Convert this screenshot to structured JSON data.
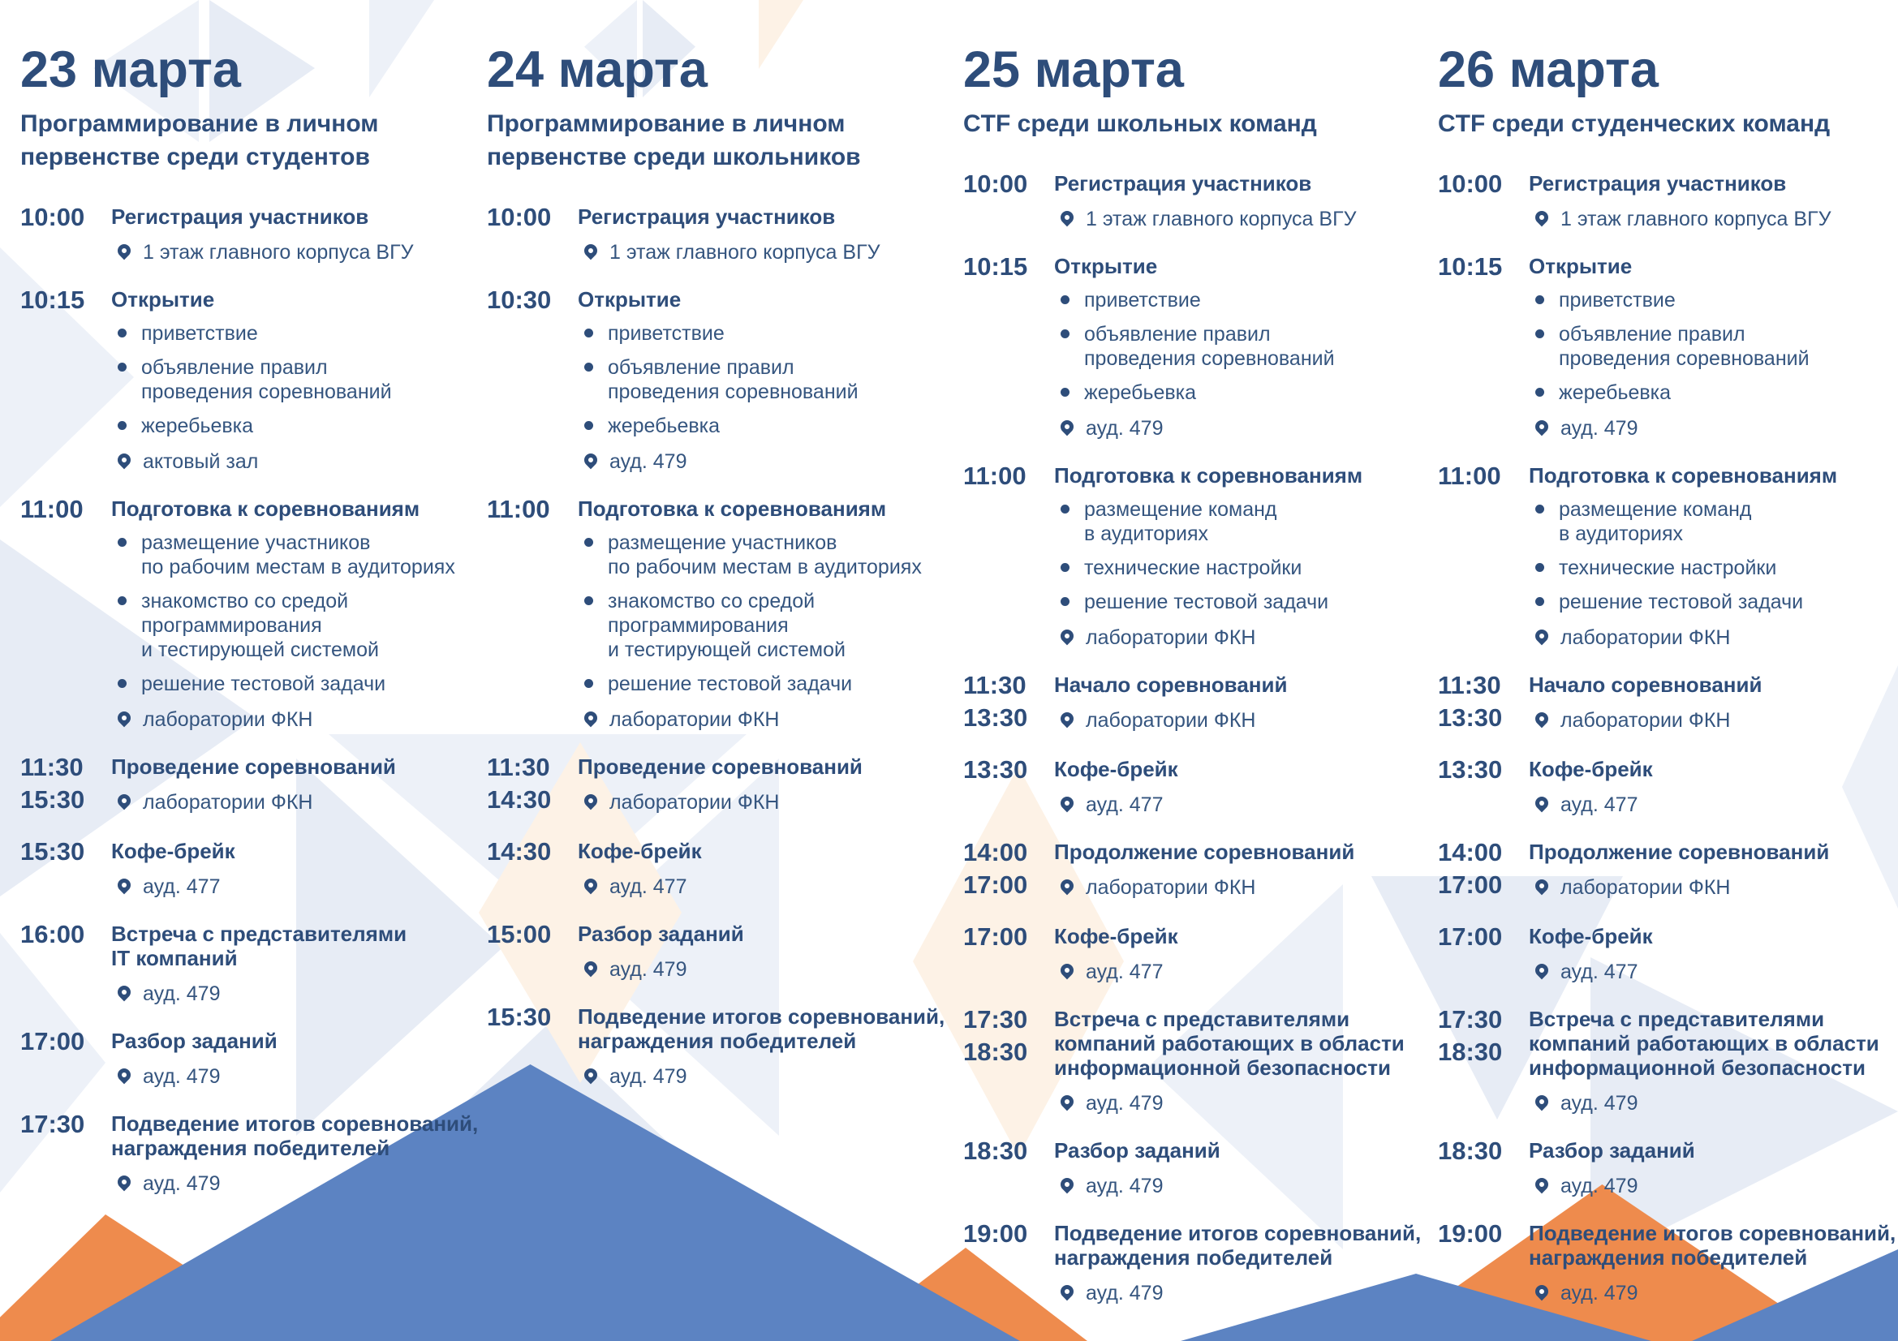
{
  "colors": {
    "navy": "#2e4d7a",
    "text": "#35557f",
    "mountain-blue": "#5c83c2",
    "mountain-orange": "#ee8b4d",
    "tri-blue": "#edf1f8",
    "tri-blue2": "#e7ecf5",
    "tri-peach": "#fdf2e6"
  },
  "icons": {
    "location": "map-pin-icon",
    "bullet": "bullet-dot-icon"
  },
  "days": [
    {
      "date": "23 марта",
      "subtitle": "Программирование в личном\nпервенстве среди студентов",
      "events": [
        {
          "times": [
            "10:00"
          ],
          "title": "Регистрация участников",
          "bullets": [],
          "location": "1 этаж главного корпуса ВГУ"
        },
        {
          "times": [
            "10:15"
          ],
          "title": "Открытие",
          "bullets": [
            "приветствие",
            "объявление правил\nпроведения соревнований",
            "жеребьевка"
          ],
          "location": "актовый зал"
        },
        {
          "times": [
            "11:00"
          ],
          "title": "Подготовка к соревнованиям",
          "bullets": [
            "размещение участников\nпо рабочим местам в аудиториях",
            "знакомство со средой\nпрограммирования\nи тестирующей системой",
            "решение тестовой задачи"
          ],
          "location": "лаборатории ФКН"
        },
        {
          "times": [
            "11:30",
            "15:30"
          ],
          "title": "Проведение соревнований",
          "bullets": [],
          "location": "лаборатории ФКН"
        },
        {
          "times": [
            "15:30"
          ],
          "title": "Кофе-брейк",
          "bullets": [],
          "location": "ауд. 477"
        },
        {
          "times": [
            "16:00"
          ],
          "title": "Встреча с представителями\nIT компаний",
          "bullets": [],
          "location": "ауд. 479"
        },
        {
          "times": [
            "17:00"
          ],
          "title": "Разбор заданий",
          "bullets": [],
          "location": "ауд. 479"
        },
        {
          "times": [
            "17:30"
          ],
          "title": "Подведение итогов соревнований,\nнаграждения победителей",
          "bullets": [],
          "location": "ауд. 479"
        }
      ]
    },
    {
      "date": "24 марта",
      "subtitle": "Программирование в личном\nпервенстве среди школьников",
      "events": [
        {
          "times": [
            "10:00"
          ],
          "title": "Регистрация участников",
          "bullets": [],
          "location": "1 этаж главного корпуса ВГУ"
        },
        {
          "times": [
            "10:30"
          ],
          "title": "Открытие",
          "bullets": [
            "приветствие",
            "объявление правил\nпроведения соревнований",
            "жеребьевка"
          ],
          "location": "ауд. 479"
        },
        {
          "times": [
            "11:00"
          ],
          "title": "Подготовка к соревнованиям",
          "bullets": [
            "размещение участников\nпо рабочим местам в аудиториях",
            "знакомство со средой\nпрограммирования\nи тестирующей системой",
            "решение тестовой задачи"
          ],
          "location": "лаборатории ФКН"
        },
        {
          "times": [
            "11:30",
            "14:30"
          ],
          "title": "Проведение соревнований",
          "bullets": [],
          "location": "лаборатории ФКН"
        },
        {
          "times": [
            "14:30"
          ],
          "title": "Кофе-брейк",
          "bullets": [],
          "location": "ауд. 477"
        },
        {
          "times": [
            "15:00"
          ],
          "title": "Разбор заданий",
          "bullets": [],
          "location": "ауд. 479"
        },
        {
          "times": [
            "15:30"
          ],
          "title": "Подведение итогов соревнований,\nнаграждения победителей",
          "bullets": [],
          "location": "ауд. 479"
        }
      ]
    },
    {
      "date": "25 марта",
      "subtitle": "CTF среди школьных команд",
      "events": [
        {
          "times": [
            "10:00"
          ],
          "title": "Регистрация участников",
          "bullets": [],
          "location": "1 этаж главного корпуса ВГУ"
        },
        {
          "times": [
            "10:15"
          ],
          "title": "Открытие",
          "bullets": [
            "приветствие",
            "объявление правил\nпроведения соревнований",
            "жеребьевка"
          ],
          "location": "ауд. 479"
        },
        {
          "times": [
            "11:00"
          ],
          "title": "Подготовка к соревнованиям",
          "bullets": [
            "размещение команд\nв аудиториях",
            "технические настройки",
            "решение тестовой задачи"
          ],
          "location": "лаборатории ФКН"
        },
        {
          "times": [
            "11:30",
            "13:30"
          ],
          "title": "Начало соревнований",
          "bullets": [],
          "location": "лаборатории ФКН"
        },
        {
          "times": [
            "13:30"
          ],
          "title": "Кофе-брейк",
          "bullets": [],
          "location": "ауд. 477"
        },
        {
          "times": [
            "14:00",
            "17:00"
          ],
          "title": "Продолжение соревнований",
          "bullets": [],
          "location": "лаборатории ФКН"
        },
        {
          "times": [
            "17:00"
          ],
          "title": "Кофе-брейк",
          "bullets": [],
          "location": "ауд. 477"
        },
        {
          "times": [
            "17:30",
            "18:30"
          ],
          "title": "Встреча с представителями\nкомпаний работающих в области\nинформационной безопасности",
          "bullets": [],
          "location": "ауд. 479"
        },
        {
          "times": [
            "18:30"
          ],
          "title": "Разбор заданий",
          "bullets": [],
          "location": "ауд. 479"
        },
        {
          "times": [
            "19:00"
          ],
          "title": "Подведение итогов соревнований,\nнаграждения победителей",
          "bullets": [],
          "location": "ауд. 479"
        }
      ]
    },
    {
      "date": "26 марта",
      "subtitle": "CTF среди студенческих команд",
      "events": [
        {
          "times": [
            "10:00"
          ],
          "title": "Регистрация участников",
          "bullets": [],
          "location": "1 этаж главного корпуса ВГУ"
        },
        {
          "times": [
            "10:15"
          ],
          "title": "Открытие",
          "bullets": [
            "приветствие",
            "объявление правил\nпроведения соревнований",
            "жеребьевка"
          ],
          "location": "ауд. 479"
        },
        {
          "times": [
            "11:00"
          ],
          "title": "Подготовка к соревнованиям",
          "bullets": [
            "размещение команд\nв аудиториях",
            "технические настройки",
            "решение тестовой задачи"
          ],
          "location": "лаборатории ФКН"
        },
        {
          "times": [
            "11:30",
            "13:30"
          ],
          "title": "Начало соревнований",
          "bullets": [],
          "location": "лаборатории ФКН"
        },
        {
          "times": [
            "13:30"
          ],
          "title": "Кофе-брейк",
          "bullets": [],
          "location": "ауд. 477"
        },
        {
          "times": [
            "14:00",
            "17:00"
          ],
          "title": "Продолжение соревнований",
          "bullets": [],
          "location": "лаборатории ФКН"
        },
        {
          "times": [
            "17:00"
          ],
          "title": "Кофе-брейк",
          "bullets": [],
          "location": "ауд. 477"
        },
        {
          "times": [
            "17:30",
            "18:30"
          ],
          "title": "Встреча с представителями\nкомпаний работающих в области\nинформационной безопасности",
          "bullets": [],
          "location": "ауд. 479"
        },
        {
          "times": [
            "18:30"
          ],
          "title": "Разбор заданий",
          "bullets": [],
          "location": "ауд. 479"
        },
        {
          "times": [
            "19:00"
          ],
          "title": "Подведение итогов соревнований,\nнаграждения победителей",
          "bullets": [],
          "location": "ауд. 479"
        }
      ]
    }
  ],
  "layout_columns_left": [
    25,
    600,
    1187,
    1772
  ]
}
